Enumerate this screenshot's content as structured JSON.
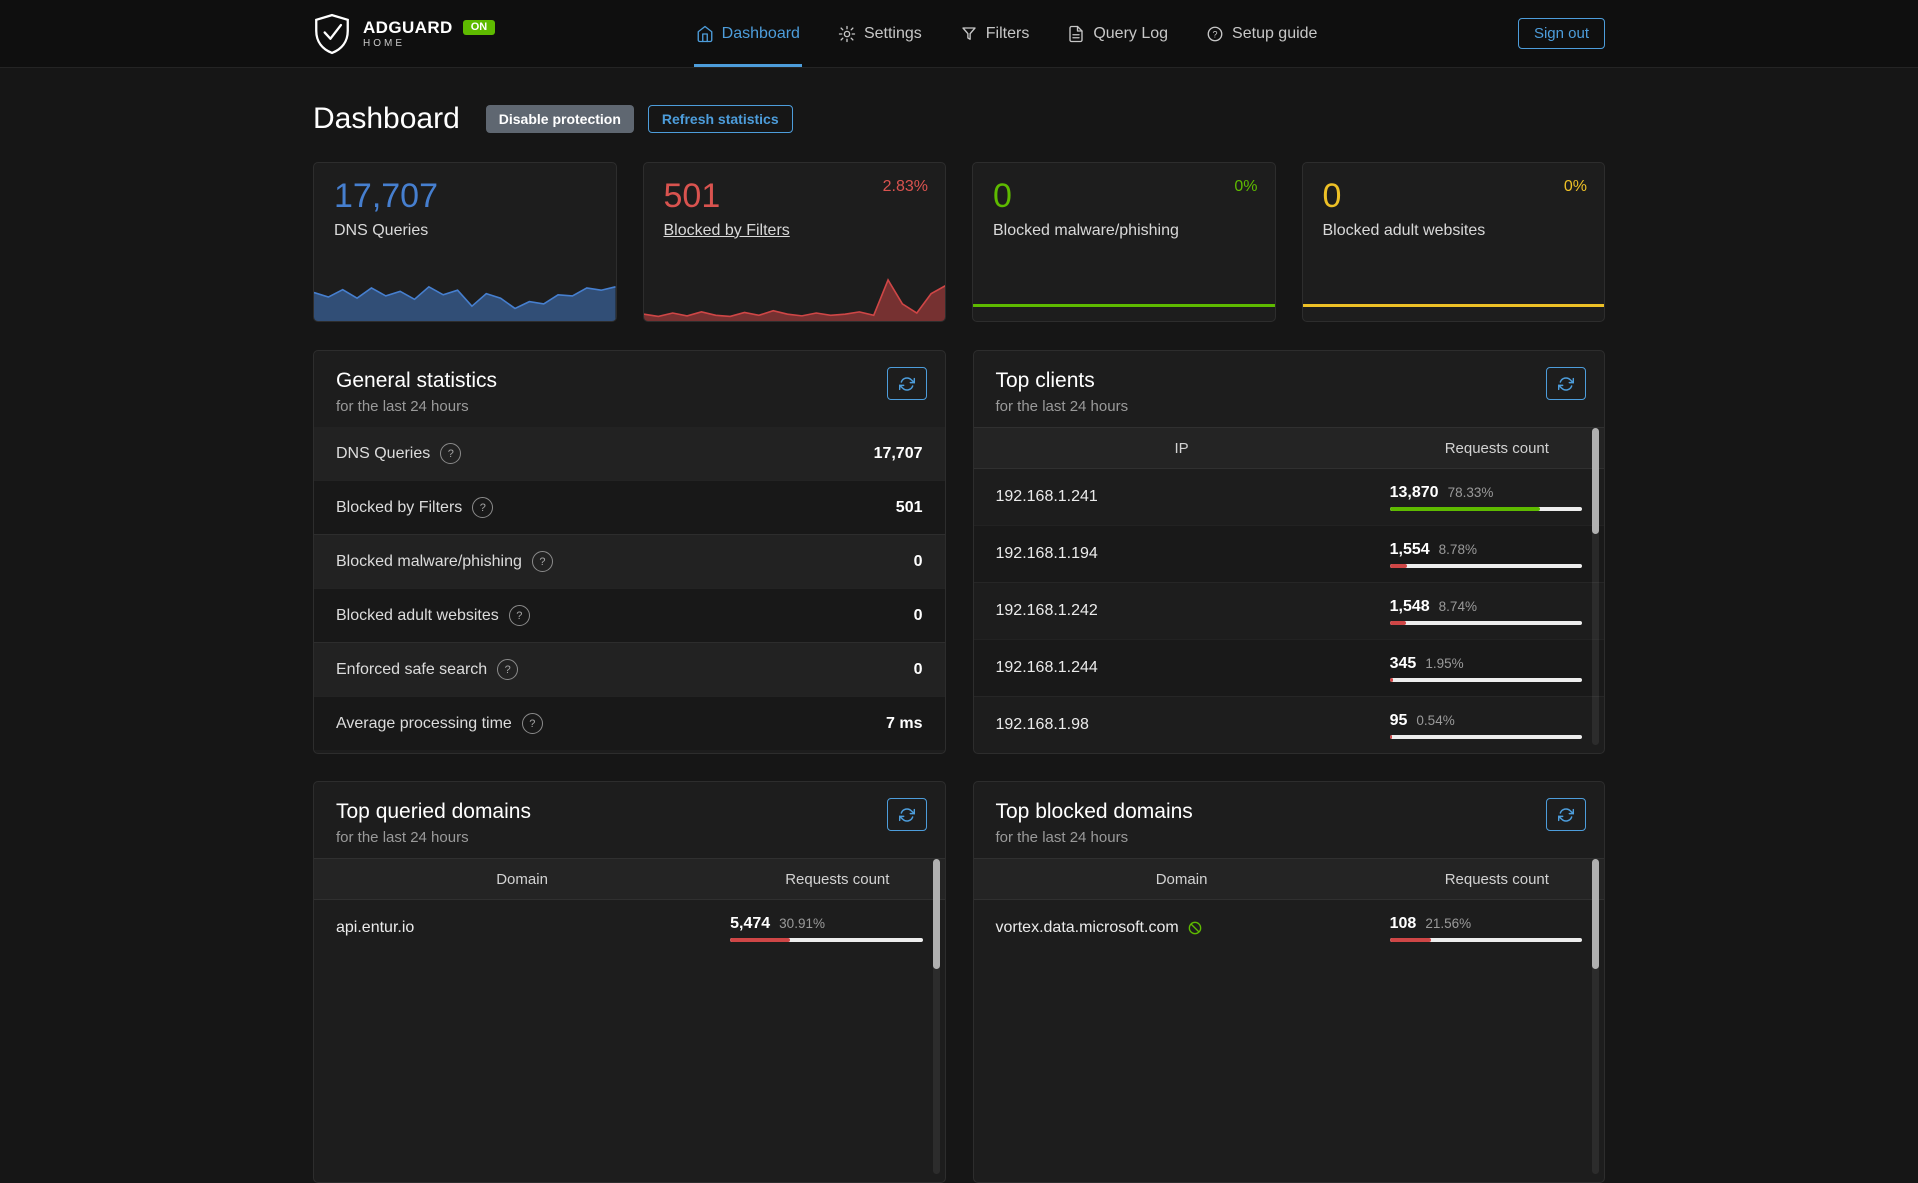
{
  "colors": {
    "accent_blue": "#4d9ddb",
    "value_blue": "#467fcf",
    "red": "#d9534f",
    "chart_red": "#cf4646",
    "green": "#5eba00",
    "yellow": "#edc026"
  },
  "header": {
    "brand": {
      "name": "ADGUARD",
      "subname": "HOME",
      "badge": "ON"
    },
    "nav_items": [
      {
        "label": "Dashboard",
        "icon": "dashboard-icon",
        "active": true
      },
      {
        "label": "Settings",
        "icon": "settings-icon",
        "active": false
      },
      {
        "label": "Filters",
        "icon": "filters-icon",
        "active": false
      },
      {
        "label": "Query Log",
        "icon": "query-log-icon",
        "active": false
      },
      {
        "label": "Setup guide",
        "icon": "setup-guide-icon",
        "active": false
      }
    ],
    "sign_out_label": "Sign out"
  },
  "page": {
    "title": "Dashboard",
    "disable_protection_label": "Disable protection",
    "refresh_statistics_label": "Refresh statistics"
  },
  "stat_cards": [
    {
      "value": "17,707",
      "label": "DNS Queries",
      "color": "#467fcf",
      "percent": "",
      "is_link": false,
      "spark": [
        50,
        42,
        55,
        40,
        58,
        44,
        52,
        38,
        60,
        46,
        54,
        26,
        48,
        40,
        22,
        34,
        30,
        46,
        44,
        58,
        54,
        60
      ]
    },
    {
      "value": "501",
      "label": "Blocked by Filters",
      "color": "#d9534f",
      "chart_color": "#cf4646",
      "percent": "2.83%",
      "is_link": true,
      "spark": [
        12,
        8,
        14,
        9,
        16,
        10,
        8,
        15,
        10,
        18,
        12,
        9,
        14,
        10,
        12,
        16,
        10,
        72,
        30,
        14,
        48,
        62
      ]
    },
    {
      "value": "0",
      "label": "Blocked malware/phishing",
      "color": "#5eba00",
      "percent": "0%",
      "is_link": false,
      "spark": null
    },
    {
      "value": "0",
      "label": "Blocked adult websites",
      "color": "#edc026",
      "percent": "0%",
      "is_link": false,
      "spark": null
    }
  ],
  "general_statistics": {
    "title": "General statistics",
    "subtitle": "for the last 24 hours",
    "help_glyph": "?",
    "rows": [
      {
        "label": "DNS Queries",
        "value": "17,707"
      },
      {
        "label": "Blocked by Filters",
        "value": "501"
      },
      {
        "label": "Blocked malware/phishing",
        "value": "0"
      },
      {
        "label": "Blocked adult websites",
        "value": "0"
      },
      {
        "label": "Enforced safe search",
        "value": "0"
      },
      {
        "label": "Average processing time",
        "value": "7 ms"
      }
    ]
  },
  "top_clients": {
    "title": "Top clients",
    "subtitle": "for the last 24 hours",
    "col_left": "IP",
    "col_right": "Requests count",
    "rows": [
      {
        "name": "192.168.1.241",
        "count": "13,870",
        "percent": "78.33%",
        "fraction": 78.33,
        "bar": "green"
      },
      {
        "name": "192.168.1.194",
        "count": "1,554",
        "percent": "8.78%",
        "fraction": 8.78,
        "bar": "red"
      },
      {
        "name": "192.168.1.242",
        "count": "1,548",
        "percent": "8.74%",
        "fraction": 8.74,
        "bar": "red"
      },
      {
        "name": "192.168.1.244",
        "count": "345",
        "percent": "1.95%",
        "fraction": 1.95,
        "bar": "red"
      },
      {
        "name": "192.168.1.98",
        "count": "95",
        "percent": "0.54%",
        "fraction": 0.54,
        "bar": "red"
      }
    ]
  },
  "top_queried_domains": {
    "title": "Top queried domains",
    "subtitle": "for the last 24 hours",
    "col_left": "Domain",
    "col_right": "Requests count",
    "rows": [
      {
        "name": "api.entur.io",
        "count": "5,474",
        "percent": "30.91%",
        "fraction": 30.91,
        "bar": "red"
      }
    ]
  },
  "top_blocked_domains": {
    "title": "Top blocked domains",
    "subtitle": "for the last 24 hours",
    "col_left": "Domain",
    "col_right": "Requests count",
    "rows": [
      {
        "name": "vortex.data.microsoft.com",
        "count": "108",
        "percent": "21.56%",
        "fraction": 21.56,
        "bar": "red",
        "blocked_icon": true
      }
    ]
  }
}
